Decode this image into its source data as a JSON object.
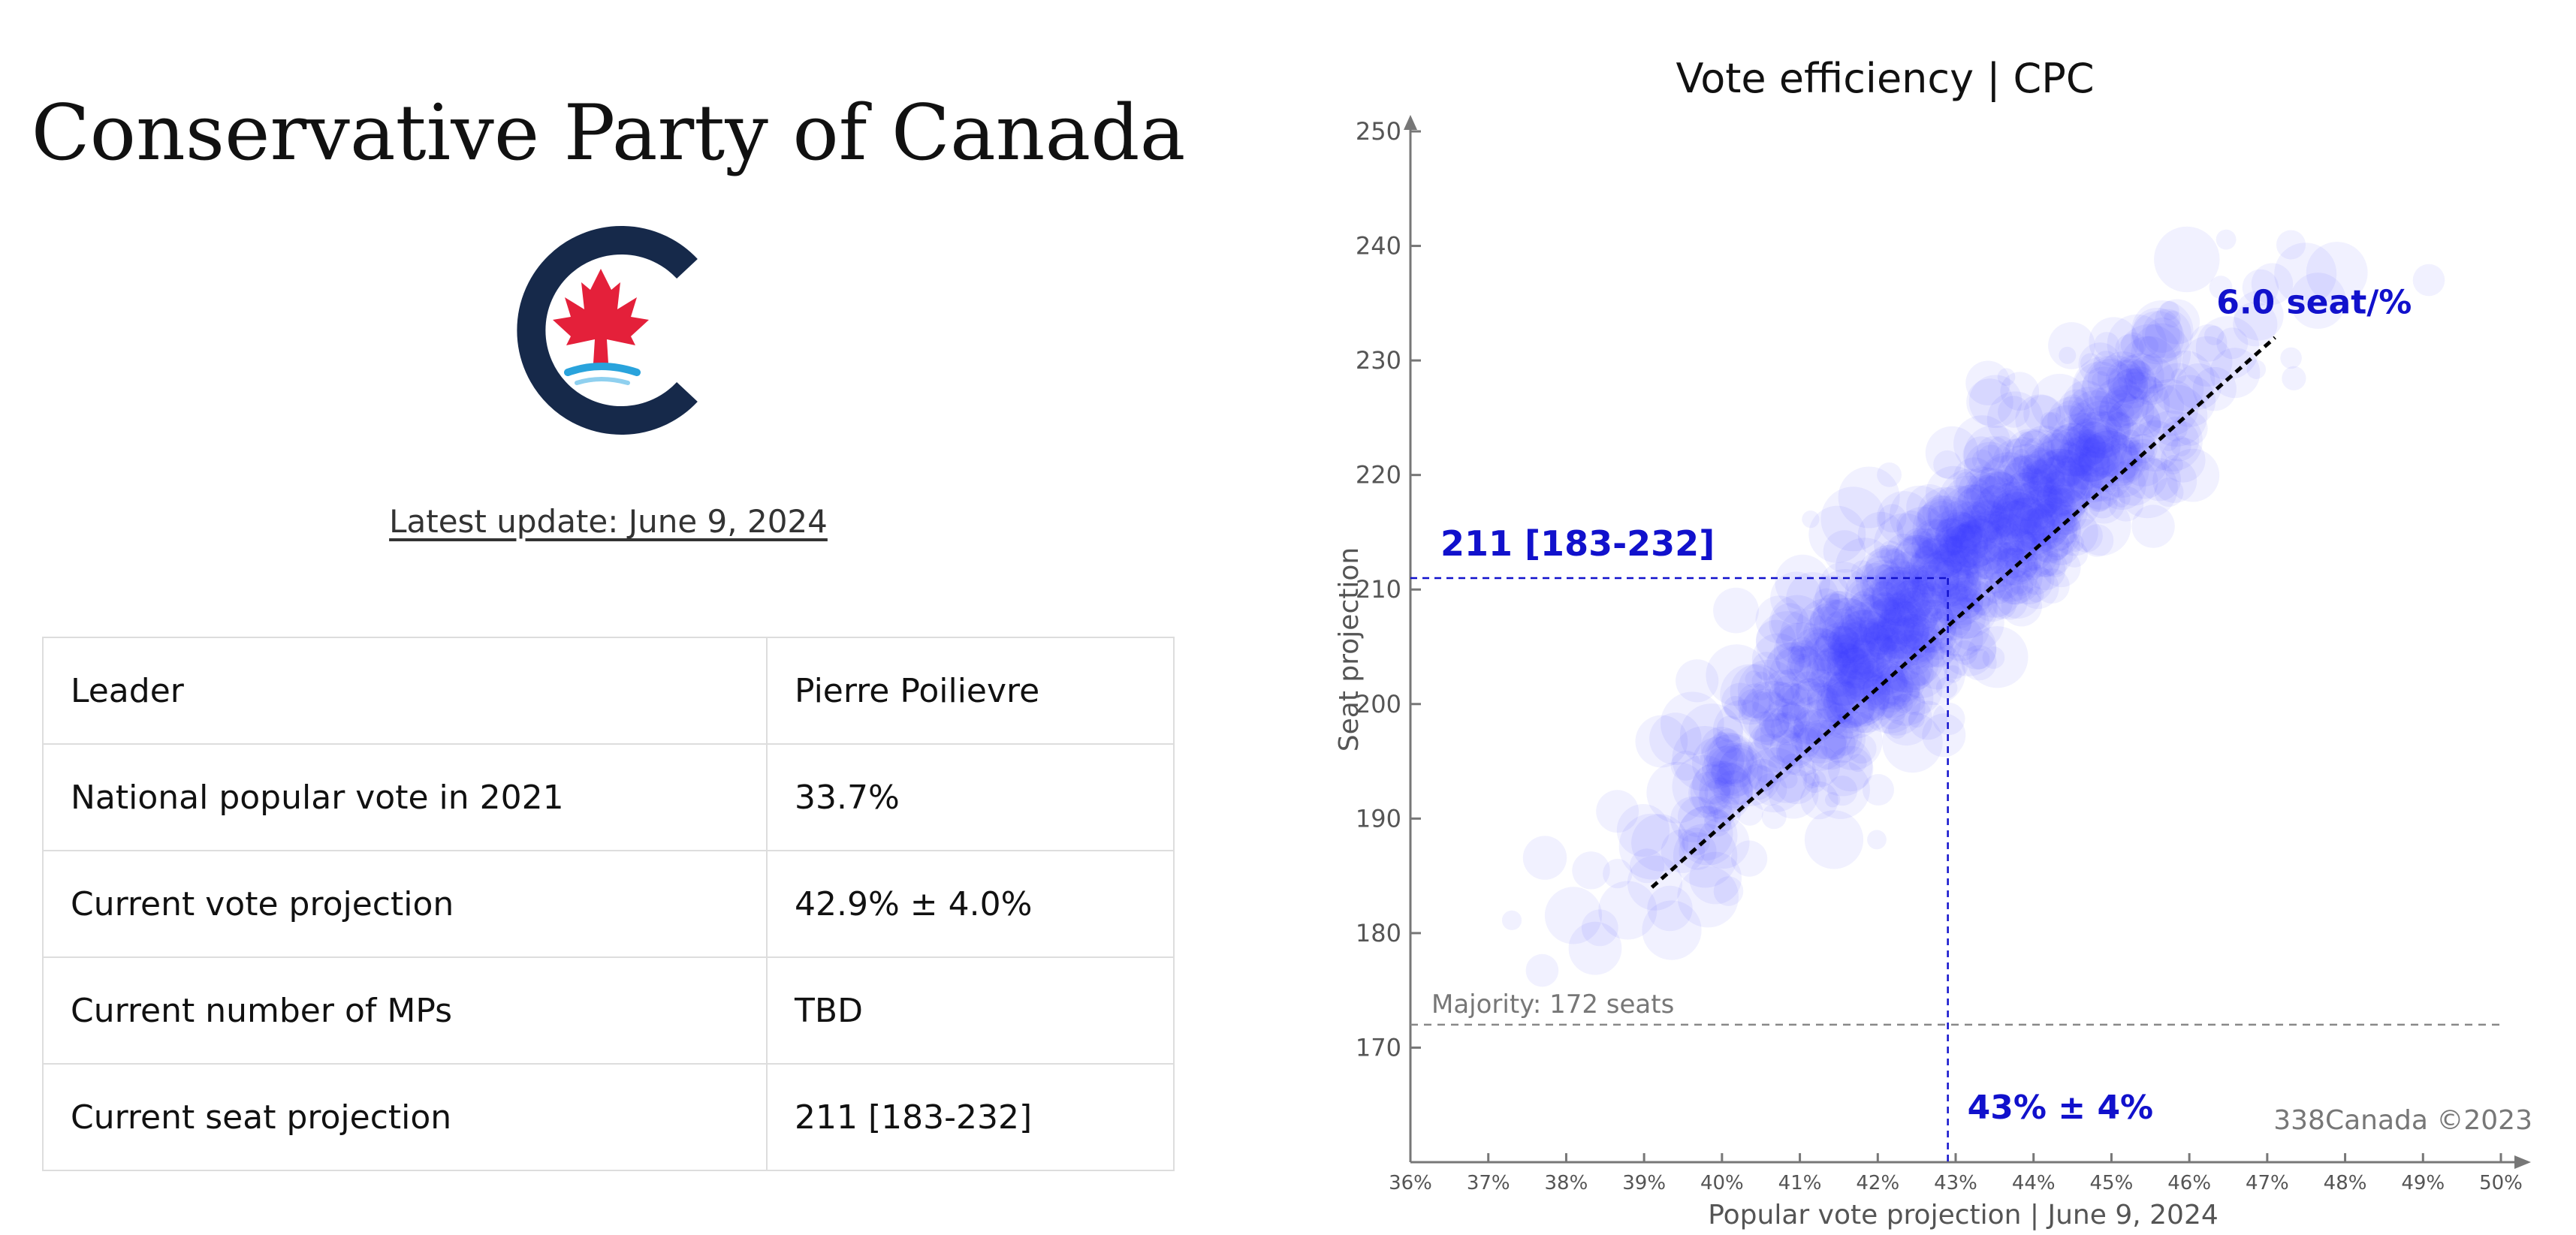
{
  "left": {
    "title": "Conservative Party of Canada",
    "logo": {
      "icon": "maple-leaf-c-logo",
      "colors": {
        "navy": "#16294a",
        "red": "#e4203a",
        "blue": "#29a3dc"
      }
    },
    "update_link": "Latest update: June 9, 2024",
    "table": [
      {
        "label": "Leader",
        "value": "Pierre Poilievre"
      },
      {
        "label": "National popular vote in 2021",
        "value": "33.7%"
      },
      {
        "label": "Current vote projection",
        "value": "42.9% ± 4.0%"
      },
      {
        "label": "Current number of MPs",
        "value": "TBD"
      },
      {
        "label": "Current seat projection",
        "value": "211 [183-232]"
      }
    ]
  },
  "chart_data": {
    "type": "scatter",
    "title": "Vote efficiency | CPC",
    "xlabel": "Popular vote projection | June 9, 2024",
    "ylabel": "Seat projection",
    "xlim": [
      36,
      50
    ],
    "ylim": [
      160,
      250
    ],
    "xticks": [
      "36%",
      "37%",
      "38%",
      "39%",
      "40%",
      "41%",
      "42%",
      "43%",
      "44%",
      "45%",
      "46%",
      "47%",
      "48%",
      "49%",
      "50%"
    ],
    "yticks": [
      "170",
      "180",
      "190",
      "200",
      "210",
      "220",
      "230",
      "240",
      "250"
    ],
    "ytick_values": [
      170,
      180,
      190,
      200,
      210,
      220,
      230,
      240,
      250
    ],
    "point_color": "#3333ff",
    "accent_color": "#1111cc",
    "trend_line": {
      "x": [
        39.1,
        47.1
      ],
      "y": [
        184,
        232
      ],
      "slope_label": "6.0 seat/%"
    },
    "projection": {
      "x": 42.9,
      "y": 211,
      "x_label": "43% ± 4%",
      "y_label": "211 [183-232]"
    },
    "majority": {
      "y": 172,
      "label": "Majority: 172 seats"
    },
    "watermark": "338Canada ©2023",
    "cloud": {
      "x_center": 42.9,
      "y_center": 211,
      "slope": 6.0,
      "x_spread": 1.8,
      "y_noise": 4.5,
      "count": 900
    }
  }
}
